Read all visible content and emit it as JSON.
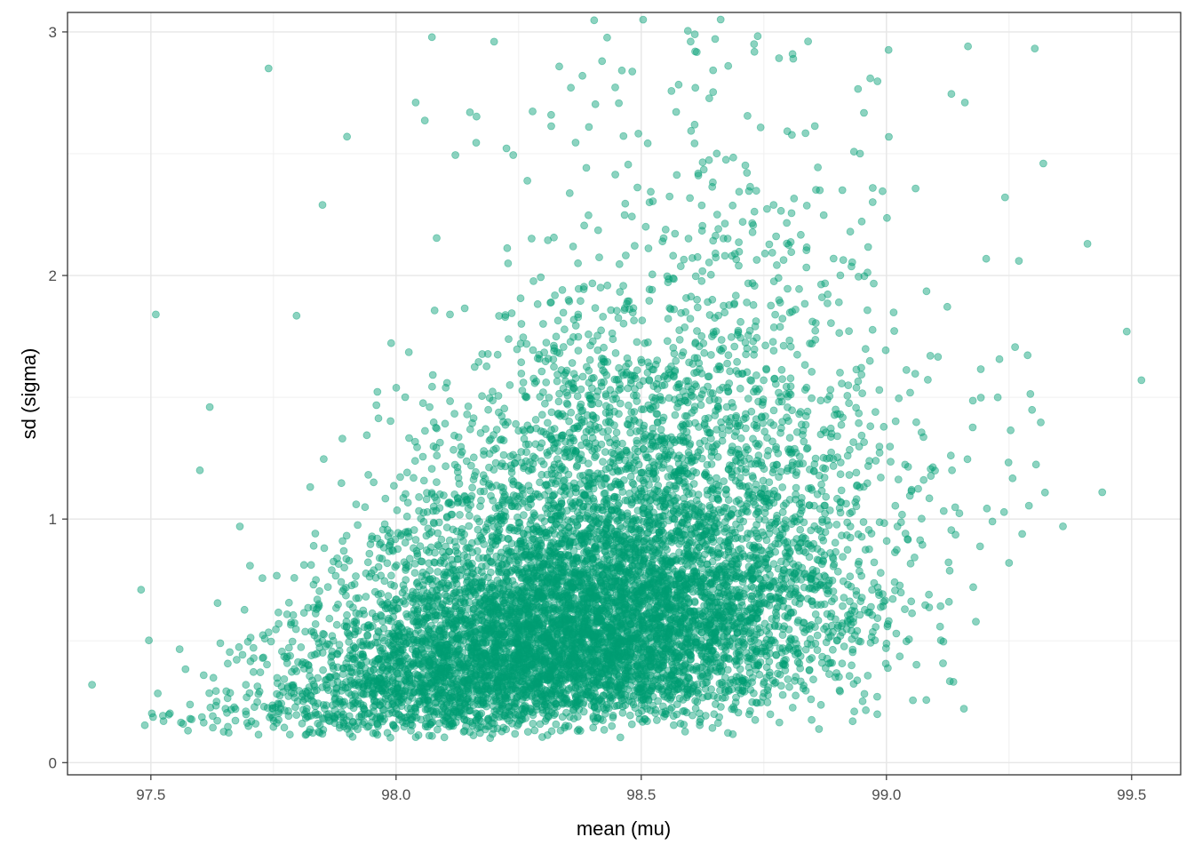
{
  "chart_data": {
    "type": "scatter",
    "title": "",
    "xlabel": "mean (mu)",
    "ylabel": "sd (sigma)",
    "xlim": [
      97.33,
      99.6
    ],
    "ylim": [
      -0.05,
      3.08
    ],
    "x_ticks": [
      97.5,
      98.0,
      98.5,
      99.0,
      99.5
    ],
    "x_tick_labels": [
      "97.5",
      "98.0",
      "98.5",
      "99.0",
      "99.5"
    ],
    "y_ticks": [
      0,
      1,
      2,
      3
    ],
    "y_tick_labels": [
      "0",
      "1",
      "2",
      "3"
    ],
    "x_minor_grid": [
      97.75,
      98.25,
      98.75,
      99.25
    ],
    "y_minor_grid": [
      0.5,
      1.5,
      2.5
    ],
    "grid": true,
    "legend": "none",
    "point_color": "#009E73",
    "point_alpha": 0.45,
    "highlight_points": [
      {
        "x": 97.38,
        "y": 0.32
      },
      {
        "x": 97.48,
        "y": 0.71
      },
      {
        "x": 97.51,
        "y": 1.84
      },
      {
        "x": 97.74,
        "y": 2.85
      },
      {
        "x": 98.2,
        "y": 2.96
      },
      {
        "x": 98.73,
        "y": 2.95
      },
      {
        "x": 98.42,
        "y": 2.88
      },
      {
        "x": 98.61,
        "y": 2.92
      },
      {
        "x": 98.81,
        "y": 2.89
      },
      {
        "x": 99.16,
        "y": 2.71
      },
      {
        "x": 99.32,
        "y": 2.46
      },
      {
        "x": 99.41,
        "y": 2.13
      },
      {
        "x": 99.49,
        "y": 1.77
      },
      {
        "x": 99.52,
        "y": 1.57
      },
      {
        "x": 99.44,
        "y": 1.11
      },
      {
        "x": 99.36,
        "y": 0.97
      },
      {
        "x": 99.25,
        "y": 0.82
      },
      {
        "x": 99.02,
        "y": 0.53
      },
      {
        "x": 98.82,
        "y": 0.45
      },
      {
        "x": 97.9,
        "y": 2.57
      },
      {
        "x": 97.85,
        "y": 2.29
      },
      {
        "x": 97.6,
        "y": 1.2
      },
      {
        "x": 97.62,
        "y": 1.46
      },
      {
        "x": 98.04,
        "y": 2.71
      },
      {
        "x": 98.38,
        "y": 2.82
      }
    ],
    "cloud": {
      "n": 9000,
      "mu_mean": 98.4,
      "mu_sd": 0.28,
      "sigma_base": 0.65,
      "sigma_slope": 0.55,
      "sigma_sd": 0.55
    }
  }
}
